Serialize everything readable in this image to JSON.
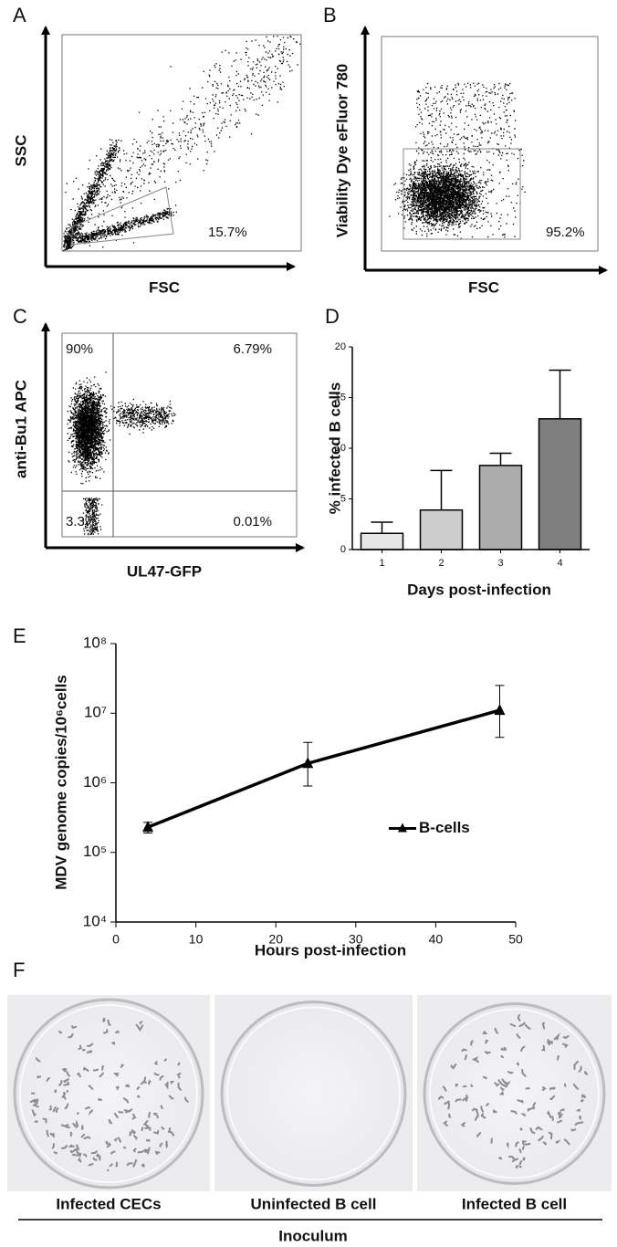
{
  "chart_data": [
    {
      "type": "flow",
      "panel_label": "A",
      "xlabel": "FSC",
      "ylabel": "SSC",
      "gates": [
        {
          "value": 15.7,
          "label": "15.7%"
        }
      ]
    },
    {
      "type": "flow",
      "panel_label": "B",
      "xlabel": "FSC",
      "ylabel": "Viability Dye eFluor 780",
      "gates": [
        {
          "value": 95.2,
          "label": "95.2%"
        }
      ]
    },
    {
      "type": "flow",
      "panel_label": "C",
      "xlabel": "UL47-GFP",
      "ylabel": "anti-Bu1 APC",
      "gates": [
        {
          "value": 90,
          "label": "90%"
        },
        {
          "value": 6.79,
          "label": "6.79%"
        },
        {
          "value": 3.3,
          "label": "3.3%"
        },
        {
          "value": 0.01,
          "label": "0.01%"
        }
      ]
    },
    {
      "type": "bar",
      "panel_label": "D",
      "xlabel": "Days post-infection",
      "ylabel": "% infected B cells",
      "categories": [
        "1",
        "2",
        "3",
        "4"
      ],
      "values": [
        1.6,
        3.9,
        8.3,
        12.9
      ],
      "errors": [
        1.1,
        3.9,
        1.2,
        4.8
      ],
      "colors": [
        "#e6e6e6",
        "#cdcdcd",
        "#acacac",
        "#7f7f7f"
      ],
      "ylim": [
        0,
        20
      ],
      "yticks": [
        0,
        5,
        10,
        15,
        20
      ]
    },
    {
      "type": "line",
      "panel_label": "E",
      "xlabel": "Hours post-infection",
      "ylabel": "MDV genome copies/10⁶cells",
      "x": [
        4,
        24,
        48
      ],
      "log_y": true,
      "series": [
        {
          "name": "B-cells",
          "color": "#000000",
          "values": [
            230000,
            1900000,
            11000000
          ],
          "yerr_minus": [
            40000,
            1000000,
            6500000
          ],
          "yerr_plus": [
            40000,
            1900000,
            14000000
          ]
        }
      ],
      "xlim": [
        0,
        50
      ],
      "xticks": [
        0,
        10,
        20,
        30,
        40,
        50
      ],
      "ylim": [
        10000,
        100000000
      ],
      "yticks": [
        {
          "value": 10000,
          "label": "10⁴"
        },
        {
          "value": 100000,
          "label": "10⁵"
        },
        {
          "value": 1000000,
          "label": "10⁶"
        },
        {
          "value": 10000000,
          "label": "10⁷"
        },
        {
          "value": 100000000,
          "label": "10⁸"
        }
      ],
      "legend": "center-right"
    }
  ],
  "plates": {
    "panel_label": "F",
    "labels": [
      "Infected CECs",
      "Uninfected B cell",
      "Infected B cell"
    ],
    "group_label": "Inoculum"
  }
}
